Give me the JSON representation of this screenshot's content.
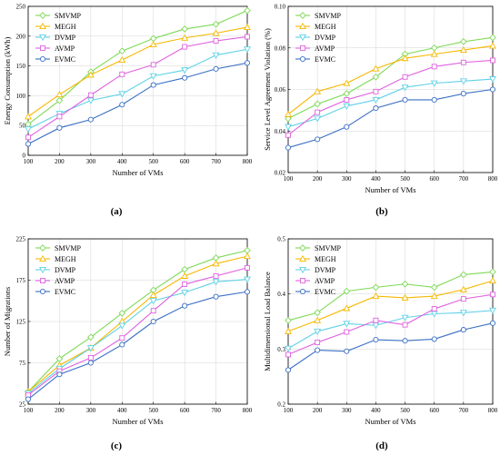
{
  "chart_data": [
    {
      "type": "line",
      "caption": "(a)",
      "xlabel": "Number of VMs",
      "ylabel": "Energy Consumption (kWh)",
      "x": [
        100,
        200,
        300,
        400,
        500,
        600,
        700,
        800
      ],
      "xlim": [
        100,
        800
      ],
      "ylim": [
        0,
        250
      ],
      "yticks": [
        0,
        50,
        100,
        150,
        200,
        250
      ],
      "yticklabels": [
        "0",
        "50",
        "100",
        "150",
        "200",
        "250"
      ],
      "legend": "top-left",
      "grid": true,
      "series": [
        {
          "name": "SMVMP",
          "color": "#7ed957",
          "marker": "diamond",
          "values": [
            52,
            92,
            140,
            175,
            196,
            212,
            220,
            243
          ]
        },
        {
          "name": "MEGH",
          "color": "#f6b800",
          "marker": "triangle-up",
          "values": [
            65,
            102,
            135,
            160,
            186,
            197,
            205,
            215
          ]
        },
        {
          "name": "DVMP",
          "color": "#5fd1e6",
          "marker": "triangle-down",
          "values": [
            44,
            70,
            92,
            103,
            133,
            143,
            168,
            178
          ]
        },
        {
          "name": "AVMP",
          "color": "#e062e0",
          "marker": "square",
          "values": [
            30,
            65,
            101,
            136,
            152,
            182,
            192,
            199
          ]
        },
        {
          "name": "EVMC",
          "color": "#3a6fc4",
          "marker": "circle",
          "values": [
            19,
            46,
            60,
            85,
            118,
            130,
            145,
            155
          ]
        }
      ]
    },
    {
      "type": "line",
      "caption": "(b)",
      "xlabel": "Number of VMs",
      "ylabel": "Service Level Agreement Violation (%)",
      "x": [
        100,
        200,
        300,
        400,
        500,
        600,
        700,
        800
      ],
      "xlim": [
        100,
        800
      ],
      "ylim": [
        0.02,
        0.1
      ],
      "yticks": [
        0.02,
        0.04,
        0.06,
        0.08,
        0.1
      ],
      "yticklabels": [
        "0.02",
        "0.04",
        "0.06",
        "0.08",
        "0.10"
      ],
      "legend": "top-left",
      "grid": true,
      "series": [
        {
          "name": "SMVMP",
          "color": "#7ed957",
          "marker": "diamond",
          "values": [
            0.046,
            0.053,
            0.058,
            0.066,
            0.077,
            0.08,
            0.083,
            0.085
          ]
        },
        {
          "name": "MEGH",
          "color": "#f6b800",
          "marker": "triangle-up",
          "values": [
            0.048,
            0.059,
            0.063,
            0.07,
            0.075,
            0.077,
            0.079,
            0.081
          ]
        },
        {
          "name": "DVMP",
          "color": "#5fd1e6",
          "marker": "triangle-down",
          "values": [
            0.042,
            0.046,
            0.052,
            0.055,
            0.061,
            0.063,
            0.064,
            0.065
          ]
        },
        {
          "name": "AVMP",
          "color": "#e062e0",
          "marker": "square",
          "values": [
            0.038,
            0.049,
            0.055,
            0.059,
            0.066,
            0.071,
            0.073,
            0.074
          ]
        },
        {
          "name": "EVMC",
          "color": "#3a6fc4",
          "marker": "circle",
          "values": [
            0.032,
            0.036,
            0.042,
            0.051,
            0.055,
            0.055,
            0.058,
            0.06
          ]
        }
      ]
    },
    {
      "type": "line",
      "caption": "(c)",
      "xlabel": "Number of VMs",
      "ylabel": "Number of Migrations",
      "x": [
        100,
        200,
        300,
        400,
        500,
        600,
        700,
        800
      ],
      "xlim": [
        100,
        800
      ],
      "ylim": [
        25,
        225
      ],
      "yticks": [
        25,
        75,
        125,
        175,
        225
      ],
      "yticklabels": [
        "25",
        "75",
        "125",
        "175",
        "225"
      ],
      "legend": "top-left",
      "grid": true,
      "series": [
        {
          "name": "SMVMP",
          "color": "#7ed957",
          "marker": "diamond",
          "values": [
            40,
            80,
            106,
            135,
            163,
            188,
            202,
            211
          ]
        },
        {
          "name": "MEGH",
          "color": "#f6b800",
          "marker": "triangle-up",
          "values": [
            40,
            72,
            93,
            125,
            157,
            180,
            195,
            204
          ]
        },
        {
          "name": "DVMP",
          "color": "#5fd1e6",
          "marker": "triangle-down",
          "values": [
            38,
            68,
            93,
            120,
            150,
            160,
            173,
            176
          ]
        },
        {
          "name": "AVMP",
          "color": "#e062e0",
          "marker": "square",
          "values": [
            36,
            65,
            81,
            105,
            138,
            170,
            180,
            190
          ]
        },
        {
          "name": "EVMC",
          "color": "#3a6fc4",
          "marker": "circle",
          "values": [
            31,
            61,
            75,
            97,
            125,
            144,
            155,
            161
          ]
        }
      ]
    },
    {
      "type": "line",
      "caption": "(d)",
      "xlabel": "Number of VMs",
      "ylabel": "Multidimensional Load Balance",
      "x": [
        100,
        200,
        300,
        400,
        500,
        600,
        700,
        800
      ],
      "xlim": [
        100,
        800
      ],
      "ylim": [
        0.2,
        0.5
      ],
      "yticks": [
        0.2,
        0.3,
        0.4,
        0.5
      ],
      "yticklabels": [
        "0.2",
        "0.3",
        "0.4",
        "0.5"
      ],
      "legend": "top-left",
      "grid": true,
      "series": [
        {
          "name": "SMVMP",
          "color": "#7ed957",
          "marker": "diamond",
          "values": [
            0.352,
            0.366,
            0.405,
            0.412,
            0.418,
            0.412,
            0.435,
            0.44
          ]
        },
        {
          "name": "MEGH",
          "color": "#f6b800",
          "marker": "triangle-up",
          "values": [
            0.332,
            0.352,
            0.374,
            0.396,
            0.393,
            0.396,
            0.408,
            0.424
          ]
        },
        {
          "name": "DVMP",
          "color": "#5fd1e6",
          "marker": "triangle-down",
          "values": [
            0.301,
            0.332,
            0.346,
            0.343,
            0.357,
            0.364,
            0.366,
            0.37
          ]
        },
        {
          "name": "AVMP",
          "color": "#e062e0",
          "marker": "square",
          "values": [
            0.29,
            0.312,
            0.331,
            0.352,
            0.344,
            0.373,
            0.391,
            0.399
          ]
        },
        {
          "name": "EVMC",
          "color": "#3a6fc4",
          "marker": "circle",
          "values": [
            0.262,
            0.298,
            0.296,
            0.317,
            0.315,
            0.318,
            0.335,
            0.347
          ]
        }
      ]
    }
  ]
}
